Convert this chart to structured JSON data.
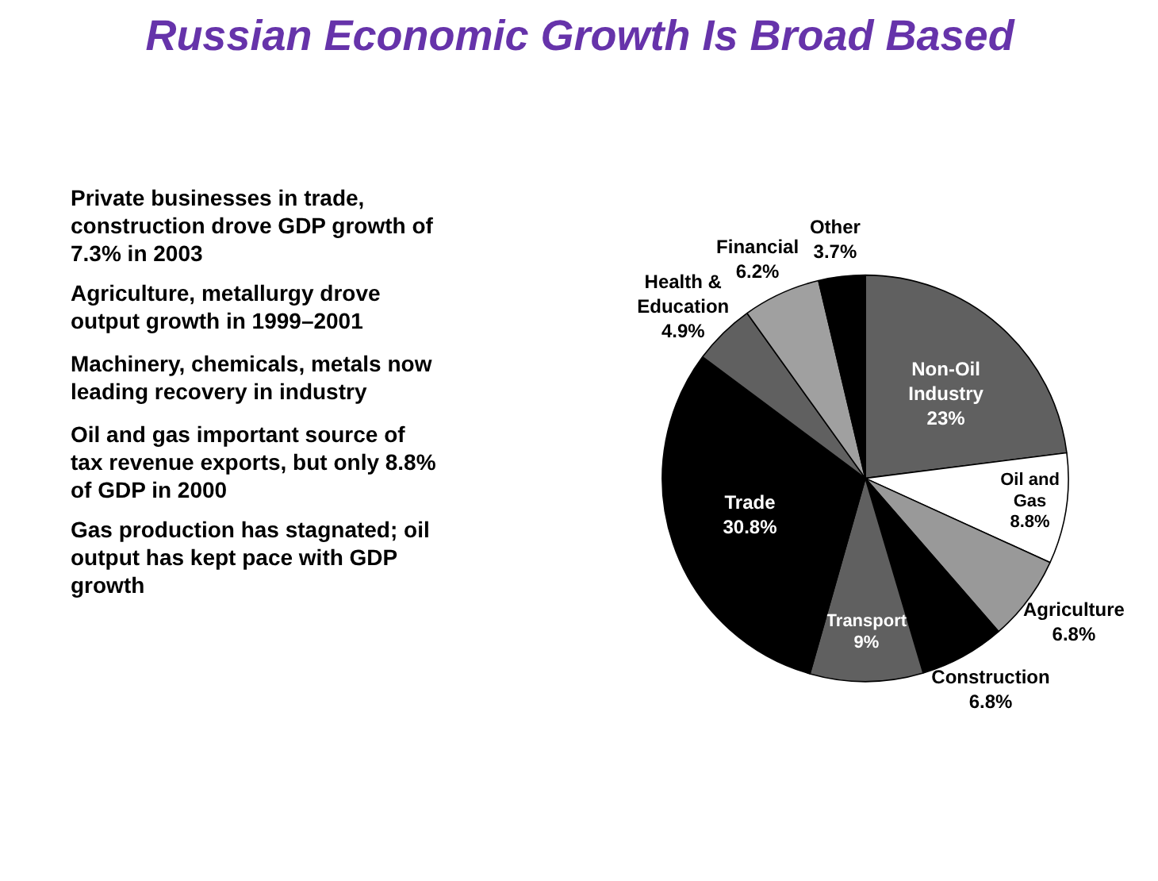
{
  "chart_data": {
    "type": "pie",
    "title": "Russian Economic Growth Is Broad Based",
    "categories": [
      "Non-Oil Industry",
      "Oil and Gas",
      "Agriculture",
      "Construction",
      "Transport",
      "Trade",
      "Health & Education",
      "Financial",
      "Other"
    ],
    "values": [
      23,
      8.8,
      6.8,
      6.8,
      9,
      30.8,
      4.9,
      6.2,
      3.7
    ],
    "value_labels": [
      "23%",
      "8.8%",
      "6.8%",
      "6.8%",
      "9%",
      "30.8%",
      "4.9%",
      "6.2%",
      "3.7%"
    ],
    "colors": [
      "#606060",
      "#ffffff",
      "#999999",
      "#000000",
      "#606060",
      "#000000",
      "#606060",
      "#a0a0a0",
      "#000000"
    ],
    "annotations": [
      "Private businesses in trade, construction drove GDP growth of 7.3% in 2003",
      "Agriculture, metallurgy drove output growth in 1999–2001",
      "Machinery, chemicals, metals now leading recovery in industry",
      "Oil and gas important source of tax revenue exports, but only 8.8% of GDP in 2000",
      "Gas production has stagnated; oil output has kept pace with GDP growth"
    ]
  }
}
